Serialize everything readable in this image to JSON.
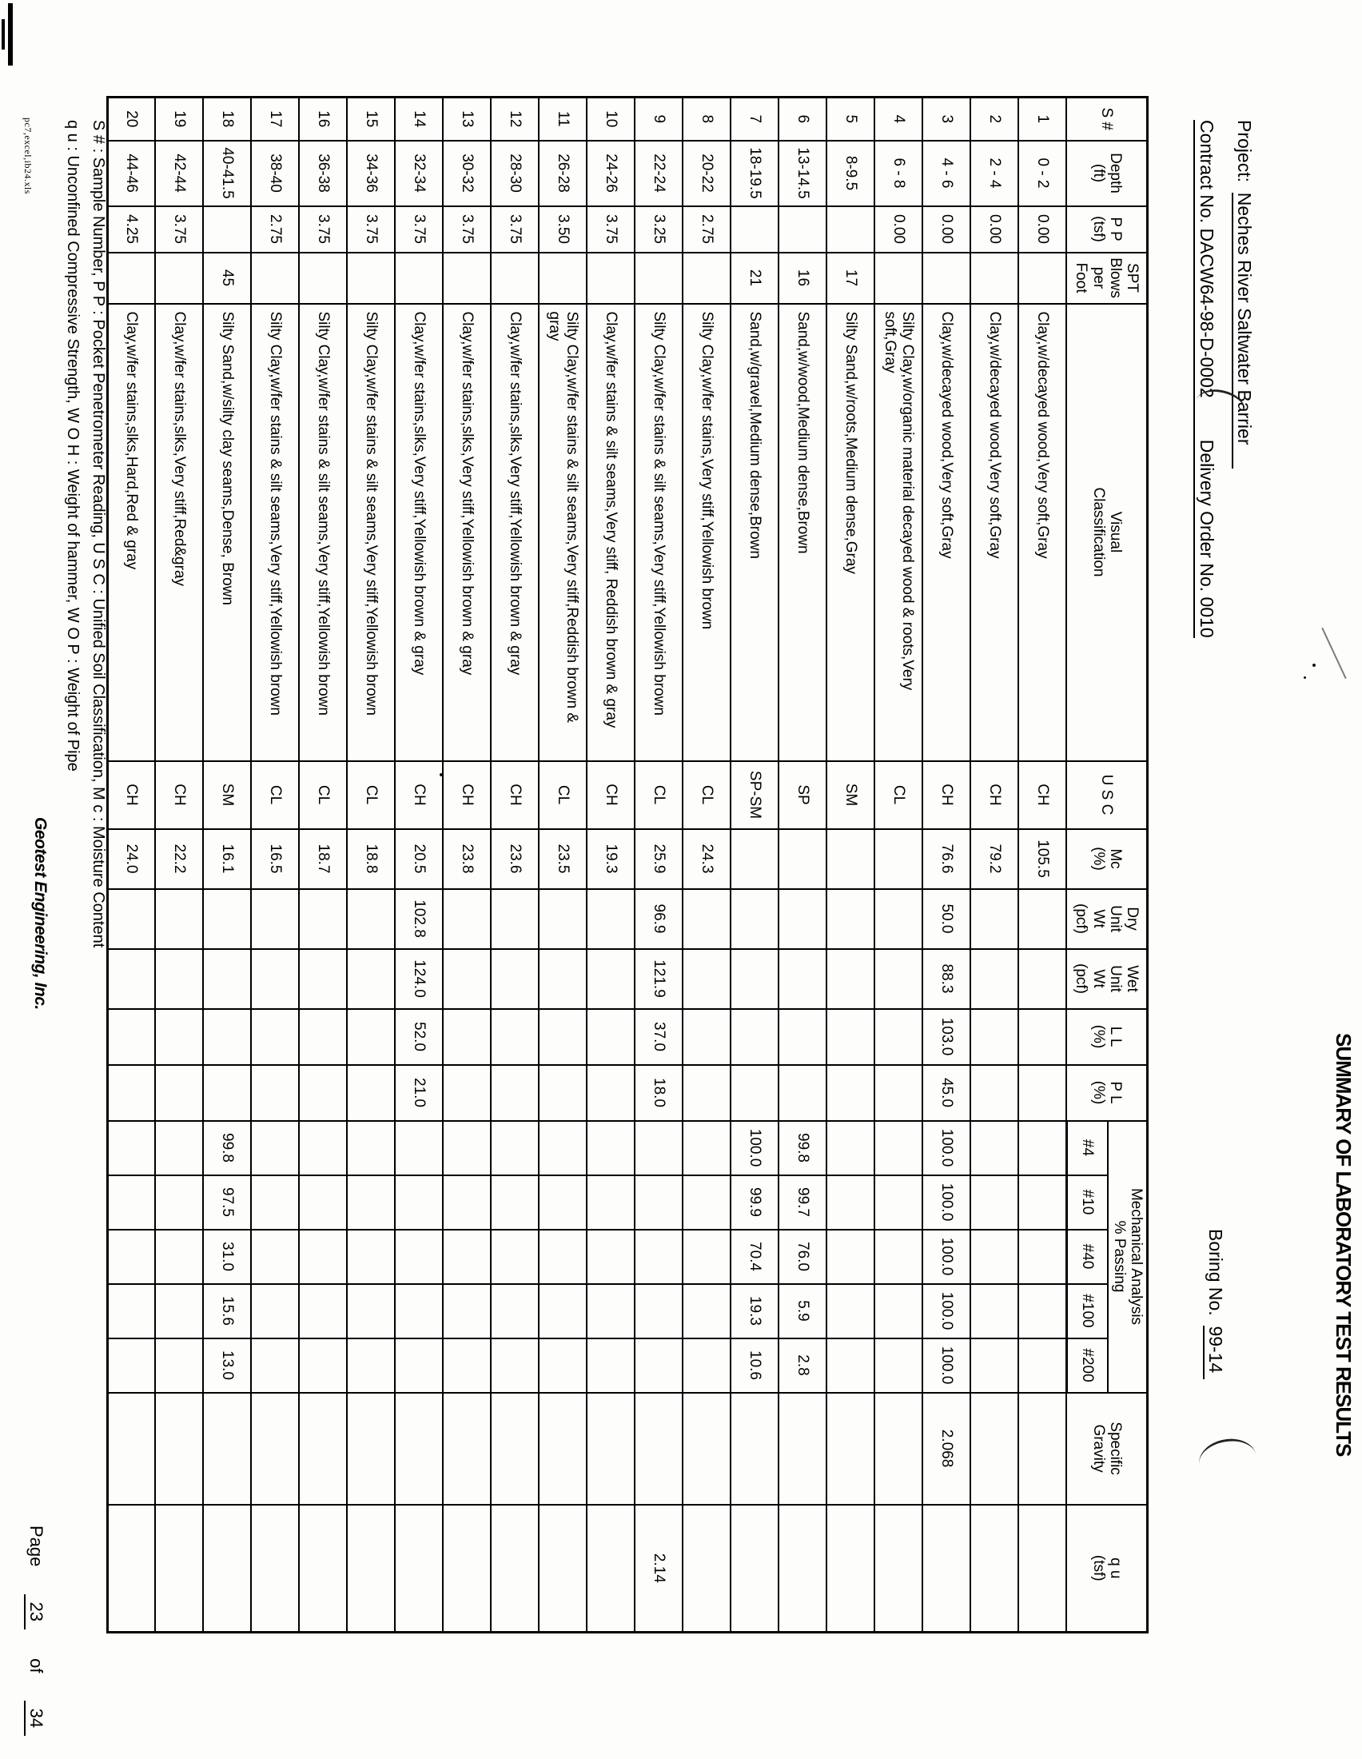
{
  "page": {
    "project_label": "Project:",
    "project_name": "Neches River Saltwater Barrier",
    "contract_label": "Contract No.",
    "contract_no": "DACW64-98-D-0002",
    "delivery_label": "Delivery Order No.",
    "delivery_no": "0010",
    "title": "SUMMARY OF LABORATORY TEST RESULTS",
    "boring_label": "Boring No.",
    "boring_no": "99-14",
    "footnote1": "S # : Sample Number,  P P :  Pocket Penetrometer Reading,  U S C :  Unified Soil Classification,  M c :  Moisture Content",
    "footnote2": "q u : Unconfined Compressive Strength,  W O H : Weight of hammer,  W O P : Weight of Pipe",
    "company": "Geotest Engineering, Inc.",
    "page_label": "Page",
    "page_no": "23",
    "of_label": "of",
    "page_total": "34",
    "file_tag": "pc7,excel,ib24.xls"
  },
  "table": {
    "headers": {
      "s": "S #",
      "depth": "Depth\n(ft)",
      "pp": "P P\n(tsf)",
      "spt": "SPT\nBlows\nper\nFoot",
      "visual": "Visual\nClassification",
      "usc": "U S C",
      "mc": "Mc\n(%)",
      "dry": "Dry\nUnit\nWt\n(pcf)",
      "wet": "Wet\nUnit\nWt\n(pcf)",
      "ll": "L L\n(%)",
      "pl": "P L\n(%)",
      "mech": "Mechanical Analysis\n% Passing",
      "s4": "#4",
      "s10": "#10",
      "s40": "#40",
      "s100": "#100",
      "s200": "#200",
      "sg": "Specific\nGravity",
      "qu": "q u\n(tsf)"
    },
    "rows": [
      {
        "s": "1",
        "depth": "0 - 2",
        "pp": "0.00",
        "spt": "",
        "visual": "Clay,w/decayed wood,Very soft,Gray",
        "usc": "CH",
        "mc": "105.5",
        "dry": "",
        "wet": "",
        "ll": "",
        "pl": "",
        "s4": "",
        "s10": "",
        "s40": "",
        "s100": "",
        "s200": "",
        "sg": "",
        "qu": ""
      },
      {
        "s": "2",
        "depth": "2 - 4",
        "pp": "0.00",
        "spt": "",
        "visual": "Clay,w/decayed wood,Very soft,Gray",
        "usc": "CH",
        "mc": "79.2",
        "dry": "",
        "wet": "",
        "ll": "",
        "pl": "",
        "s4": "",
        "s10": "",
        "s40": "",
        "s100": "",
        "s200": "",
        "sg": "",
        "qu": ""
      },
      {
        "s": "3",
        "depth": "4 - 6",
        "pp": "0.00",
        "spt": "",
        "visual": "Clay,w/decayed wood,Very soft,Gray",
        "usc": "CH",
        "mc": "76.6",
        "dry": "50.0",
        "wet": "88.3",
        "ll": "103.0",
        "pl": "45.0",
        "s4": "100.0",
        "s10": "100.0",
        "s40": "100.0",
        "s100": "100.0",
        "s200": "100.0",
        "sg": "2.068",
        "qu": ""
      },
      {
        "s": "4",
        "depth": "6 - 8",
        "pp": "0.00",
        "spt": "",
        "visual": "Silty Clay,w/organic material decayed wood & roots,Very soft,Gray",
        "usc": "CL",
        "mc": "",
        "dry": "",
        "wet": "",
        "ll": "",
        "pl": "",
        "s4": "",
        "s10": "",
        "s40": "",
        "s100": "",
        "s200": "",
        "sg": "",
        "qu": ""
      },
      {
        "s": "5",
        "depth": "8-9.5",
        "pp": "",
        "spt": "17",
        "visual": "Silty Sand,w/roots,Medium dense,Gray",
        "usc": "SM",
        "mc": "",
        "dry": "",
        "wet": "",
        "ll": "",
        "pl": "",
        "s4": "",
        "s10": "",
        "s40": "",
        "s100": "",
        "s200": "",
        "sg": "",
        "qu": ""
      },
      {
        "s": "6",
        "depth": "13-14.5",
        "pp": "",
        "spt": "16",
        "visual": "Sand,w/wood,Medium dense,Brown",
        "usc": "SP",
        "mc": "",
        "dry": "",
        "wet": "",
        "ll": "",
        "pl": "",
        "s4": "99.8",
        "s10": "99.7",
        "s40": "76.0",
        "s100": "5.9",
        "s200": "2.8",
        "sg": "",
        "qu": ""
      },
      {
        "s": "7",
        "depth": "18-19.5",
        "pp": "",
        "spt": "21",
        "visual": "Sand,w/gravel,Medium dense,Brown",
        "usc": "SP-SM",
        "mc": "",
        "dry": "",
        "wet": "",
        "ll": "",
        "pl": "",
        "s4": "100.0",
        "s10": "99.9",
        "s40": "70.4",
        "s100": "19.3",
        "s200": "10.6",
        "sg": "",
        "qu": ""
      },
      {
        "s": "8",
        "depth": "20-22",
        "pp": "2.75",
        "spt": "",
        "visual": "Silty Clay,w/fer stains,Very stiff,Yellowish brown",
        "usc": "CL",
        "mc": "24.3",
        "dry": "",
        "wet": "",
        "ll": "",
        "pl": "",
        "s4": "",
        "s10": "",
        "s40": "",
        "s100": "",
        "s200": "",
        "sg": "",
        "qu": ""
      },
      {
        "s": "9",
        "depth": "22-24",
        "pp": "3.25",
        "spt": "",
        "visual": "Silty Clay,w/fer stains & silt seams,Very stiff,Yellowish brown",
        "usc": "CL",
        "mc": "25.9",
        "dry": "96.9",
        "wet": "121.9",
        "ll": "37.0",
        "pl": "18.0",
        "s4": "",
        "s10": "",
        "s40": "",
        "s100": "",
        "s200": "",
        "sg": "",
        "qu": "2.14"
      },
      {
        "s": "10",
        "depth": "24-26",
        "pp": "3.75",
        "spt": "",
        "visual": "Clay,w/fer stains & silt seams,Very stiff, Reddish brown & gray",
        "usc": "CH",
        "mc": "19.3",
        "dry": "",
        "wet": "",
        "ll": "",
        "pl": "",
        "s4": "",
        "s10": "",
        "s40": "",
        "s100": "",
        "s200": "",
        "sg": "",
        "qu": ""
      },
      {
        "s": "11",
        "depth": "26-28",
        "pp": "3.50",
        "spt": "",
        "visual": "Silty Clay,w/fer stains & silt seams,Very stiff,Reddish brown & gray",
        "usc": "CL",
        "mc": "23.5",
        "dry": "",
        "wet": "",
        "ll": "",
        "pl": "",
        "s4": "",
        "s10": "",
        "s40": "",
        "s100": "",
        "s200": "",
        "sg": "",
        "qu": ""
      },
      {
        "s": "12",
        "depth": "28-30",
        "pp": "3.75",
        "spt": "",
        "visual": "Clay,w/fer stains,slks,Very stiff,Yellowish brown & gray",
        "usc": "CH",
        "mc": "23.6",
        "dry": "",
        "wet": "",
        "ll": "",
        "pl": "",
        "s4": "",
        "s10": "",
        "s40": "",
        "s100": "",
        "s200": "",
        "sg": "",
        "qu": ""
      },
      {
        "s": "13",
        "depth": "30-32",
        "pp": "3.75",
        "spt": "",
        "visual": "Clay,w/fer stains,slks,Very stiff,Yellowish brown & gray",
        "usc": "CH",
        "mc": "23.8",
        "dry": "",
        "wet": "",
        "ll": "",
        "pl": "",
        "s4": "",
        "s10": "",
        "s40": "",
        "s100": "",
        "s200": "",
        "sg": "",
        "qu": ""
      },
      {
        "s": "14",
        "depth": "32-34",
        "pp": "3.75",
        "spt": "",
        "visual": "Clay,w/fer stains,slks,Very stiff,Yellowish brown & gray",
        "usc": "CH",
        "mc": "20.5",
        "dry": "102.8",
        "wet": "124.0",
        "ll": "52.0",
        "pl": "21.0",
        "s4": "",
        "s10": "",
        "s40": "",
        "s100": "",
        "s200": "",
        "sg": "",
        "qu": ""
      },
      {
        "s": "15",
        "depth": "34-36",
        "pp": "3.75",
        "spt": "",
        "visual": "Silty Clay,w/fer stains & silt seams,Very stiff,Yellowish brown",
        "usc": "CL",
        "mc": "18.8",
        "dry": "",
        "wet": "",
        "ll": "",
        "pl": "",
        "s4": "",
        "s10": "",
        "s40": "",
        "s100": "",
        "s200": "",
        "sg": "",
        "qu": ""
      },
      {
        "s": "16",
        "depth": "36-38",
        "pp": "3.75",
        "spt": "",
        "visual": "Silty Clay,w/fer stains & silt seams,Very stiff,Yellowish brown",
        "usc": "CL",
        "mc": "18.7",
        "dry": "",
        "wet": "",
        "ll": "",
        "pl": "",
        "s4": "",
        "s10": "",
        "s40": "",
        "s100": "",
        "s200": "",
        "sg": "",
        "qu": ""
      },
      {
        "s": "17",
        "depth": "38-40",
        "pp": "2.75",
        "spt": "",
        "visual": "Silty Clay,w/fer stains & silt seams,Very stiff,Yellowish brown",
        "usc": "CL",
        "mc": "16.5",
        "dry": "",
        "wet": "",
        "ll": "",
        "pl": "",
        "s4": "",
        "s10": "",
        "s40": "",
        "s100": "",
        "s200": "",
        "sg": "",
        "qu": ""
      },
      {
        "s": "18",
        "depth": "40-41.5",
        "pp": "",
        "spt": "45",
        "visual": "Silty Sand,w/silty clay seams,Dense, Brown",
        "usc": "SM",
        "mc": "16.1",
        "dry": "",
        "wet": "",
        "ll": "",
        "pl": "",
        "s4": "99.8",
        "s10": "97.5",
        "s40": "31.0",
        "s100": "15.6",
        "s200": "13.0",
        "sg": "",
        "qu": ""
      },
      {
        "s": "19",
        "depth": "42-44",
        "pp": "3.75",
        "spt": "",
        "visual": "Clay,w/fer stains,slks,Very stiff,Red&gray",
        "usc": "CH",
        "mc": "22.2",
        "dry": "",
        "wet": "",
        "ll": "",
        "pl": "",
        "s4": "",
        "s10": "",
        "s40": "",
        "s100": "",
        "s200": "",
        "sg": "",
        "qu": ""
      },
      {
        "s": "20",
        "depth": "44-46",
        "pp": "4.25",
        "spt": "",
        "visual": "Clay,w/fer stains,slks,Hard,Red & gray",
        "usc": "CH",
        "mc": "24.0",
        "dry": "",
        "wet": "",
        "ll": "",
        "pl": "",
        "s4": "",
        "s10": "",
        "s40": "",
        "s100": "",
        "s200": "",
        "sg": "",
        "qu": ""
      }
    ]
  }
}
